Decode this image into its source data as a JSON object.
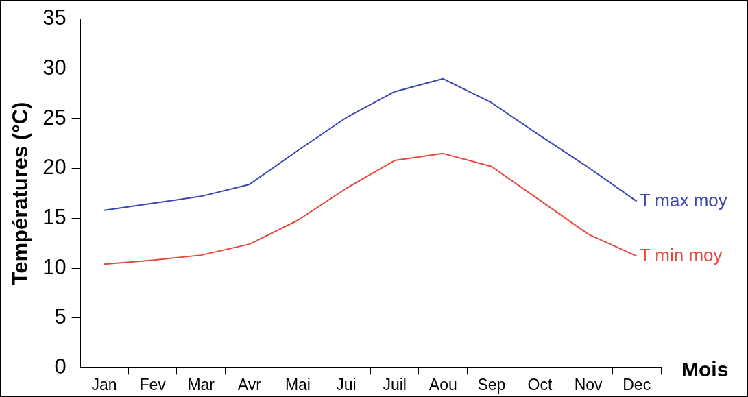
{
  "chart_data": {
    "type": "line",
    "ylabel": "Températures (°C)",
    "xlabel": "Mois",
    "categories": [
      "Jan",
      "Fev",
      "Mar",
      "Avr",
      "Mai",
      "Jui",
      "Juil",
      "Aou",
      "Sep",
      "Oct",
      "Nov",
      "Dec"
    ],
    "series": [
      {
        "name": "T max moy",
        "color": "#3c46b4",
        "values": [
          15.8,
          16.5,
          17.2,
          18.4,
          21.8,
          25.1,
          27.7,
          29.0,
          26.6,
          23.3,
          20.1,
          16.7
        ]
      },
      {
        "name": "T min moy",
        "color": "#e8483c",
        "values": [
          10.4,
          10.8,
          11.3,
          12.4,
          14.8,
          18.0,
          20.8,
          21.5,
          20.2,
          16.8,
          13.4,
          11.2
        ]
      }
    ],
    "ylim": [
      0,
      35
    ],
    "yticks": [
      0,
      5,
      10,
      15,
      20,
      25,
      30,
      35
    ],
    "grid": false,
    "legend": false,
    "marker": "none",
    "line_style": "solid"
  }
}
